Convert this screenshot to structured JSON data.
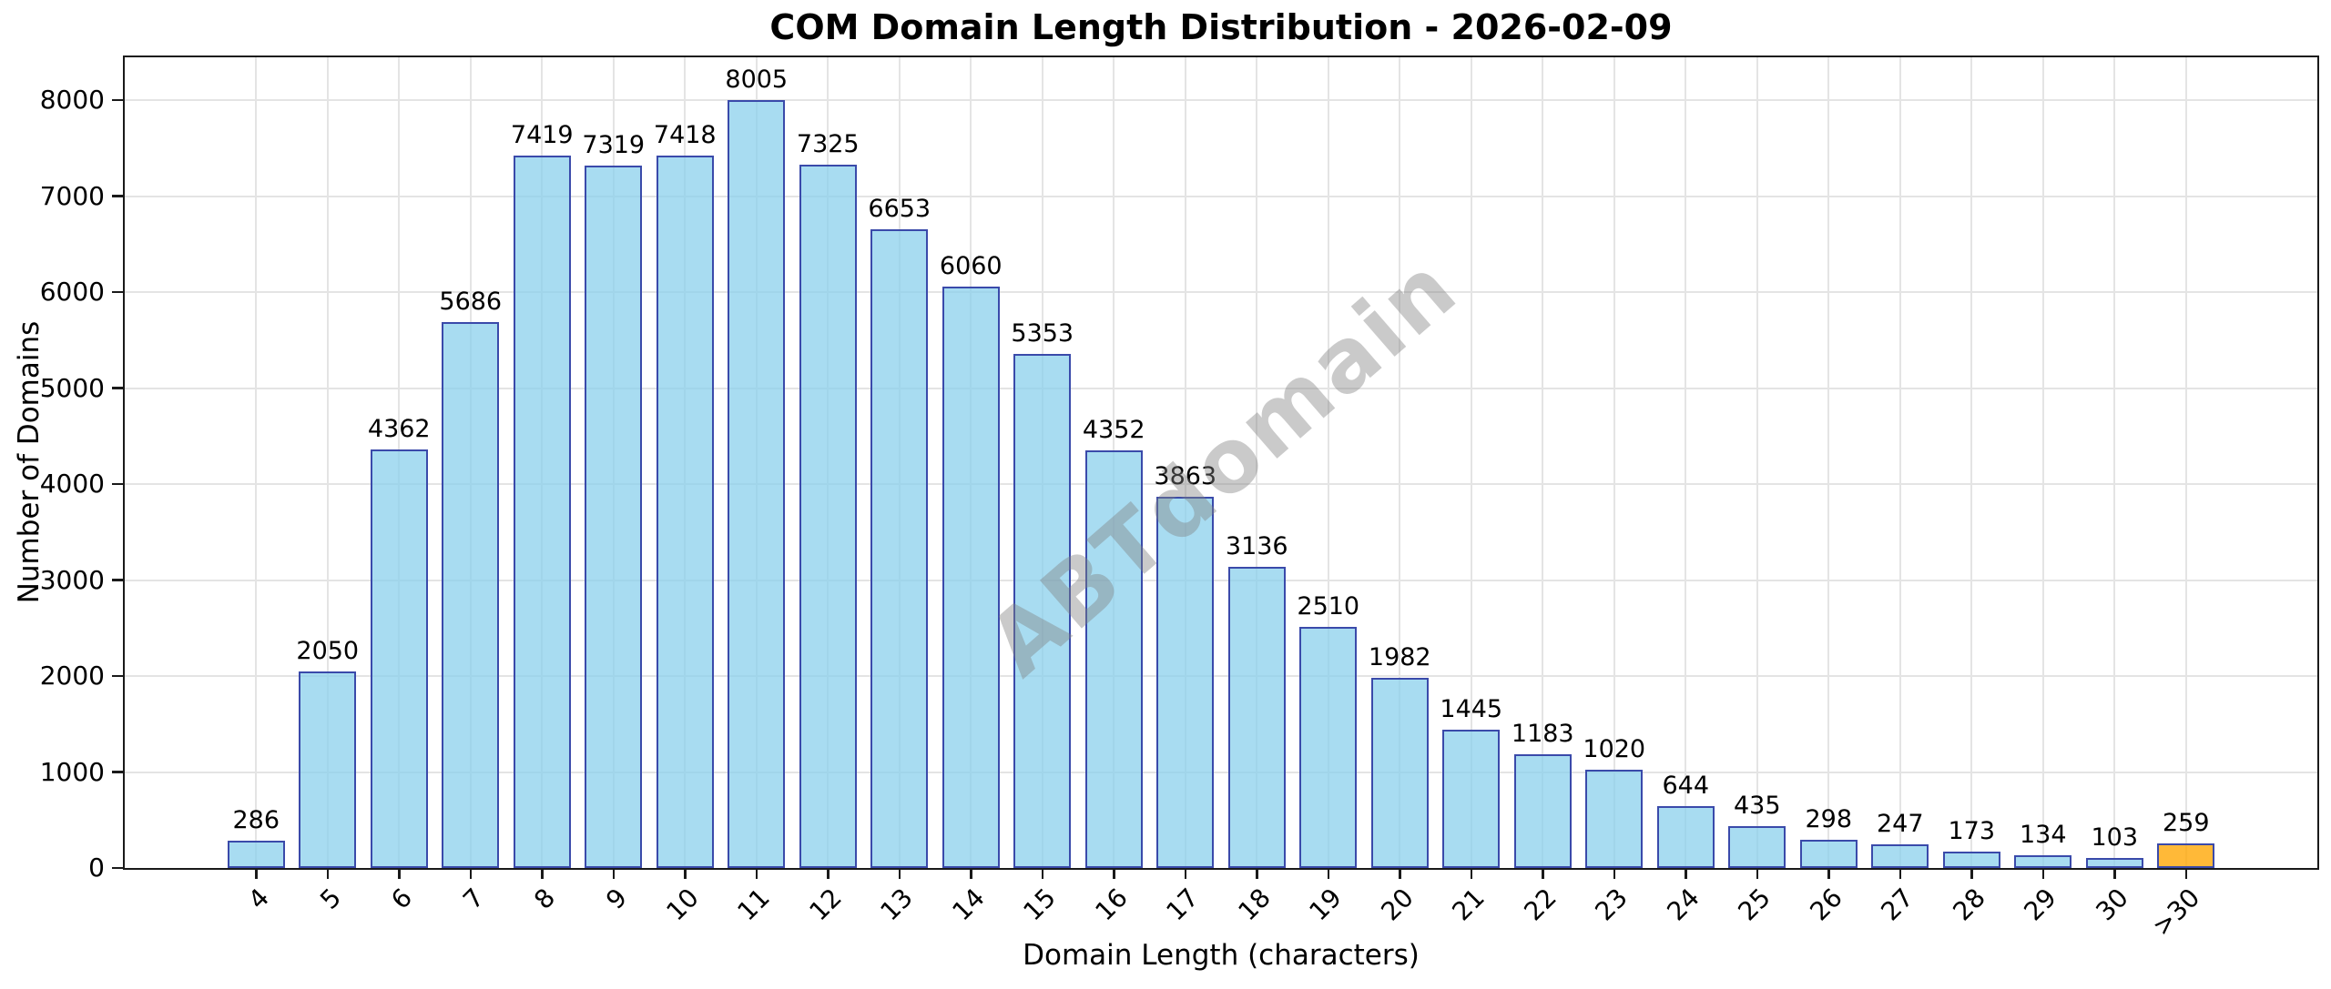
{
  "page": {
    "background": "#ffffff"
  },
  "chart_data": {
    "type": "bar",
    "title": "COM Domain Length Distribution - 2026-02-09",
    "xlabel": "Domain Length (characters)",
    "ylabel": "Number of Domains",
    "categories": [
      "4",
      "5",
      "6",
      "7",
      "8",
      "9",
      "10",
      "11",
      "12",
      "13",
      "14",
      "15",
      "16",
      "17",
      "18",
      "19",
      "20",
      "21",
      "22",
      "23",
      "24",
      "25",
      "26",
      "27",
      "28",
      "29",
      "30",
      ">30"
    ],
    "values": [
      286,
      2050,
      4362,
      5686,
      7419,
      7319,
      7418,
      8005,
      7325,
      6653,
      6060,
      5353,
      4352,
      3863,
      3136,
      2510,
      1982,
      1445,
      1183,
      1020,
      644,
      435,
      298,
      247,
      173,
      134,
      103,
      259
    ],
    "bar_value_labels_shown": true,
    "yticks": [
      0,
      1000,
      2000,
      3000,
      4000,
      5000,
      6000,
      7000,
      8000
    ],
    "ylim": [
      0,
      8446
    ],
    "grid": true,
    "legend": "none",
    "x_tick_rotation_deg": 45,
    "watermark": "ABTdomain",
    "highlight_category": ">30",
    "colors": {
      "bar_fill": "rgba(135,206,235,0.72)",
      "bar_edge": "#3a4aaa",
      "highlight_fill": "rgba(255,165,0,0.78)",
      "grid": "#e4e4e4",
      "axis": "#1a1a1a",
      "text": "#000000",
      "watermark": "rgba(128,128,128,0.42)"
    }
  }
}
